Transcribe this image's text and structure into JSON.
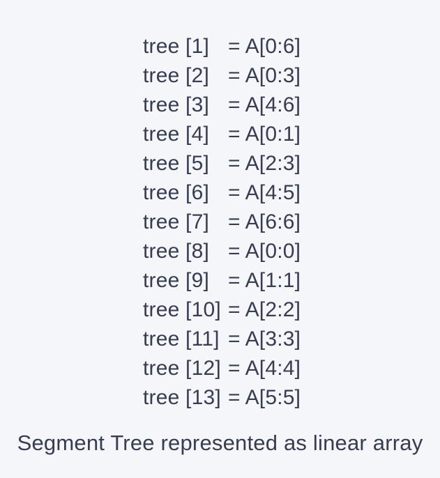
{
  "colors": {
    "background": "#f5f6f9",
    "text": "#363c52"
  },
  "list": {
    "rows": [
      {
        "label": "tree [1]",
        "value": "= A[0:6]"
      },
      {
        "label": "tree [2]",
        "value": "= A[0:3]"
      },
      {
        "label": "tree [3]",
        "value": "= A[4:6]"
      },
      {
        "label": "tree [4]",
        "value": "= A[0:1]"
      },
      {
        "label": "tree [5]",
        "value": "= A[2:3]"
      },
      {
        "label": "tree [6]",
        "value": "= A[4:5]"
      },
      {
        "label": "tree [7]",
        "value": "= A[6:6]"
      },
      {
        "label": "tree [8]",
        "value": "= A[0:0]"
      },
      {
        "label": "tree [9]",
        "value": "= A[1:1]"
      },
      {
        "label": "tree [10]",
        "value": "= A[2:2]"
      },
      {
        "label": "tree [11]",
        "value": "= A[3:3]"
      },
      {
        "label": "tree [12]",
        "value": "= A[4:4]"
      },
      {
        "label": "tree [13]",
        "value": "= A[5:5]"
      }
    ]
  },
  "caption": "Segment Tree represented as linear array"
}
